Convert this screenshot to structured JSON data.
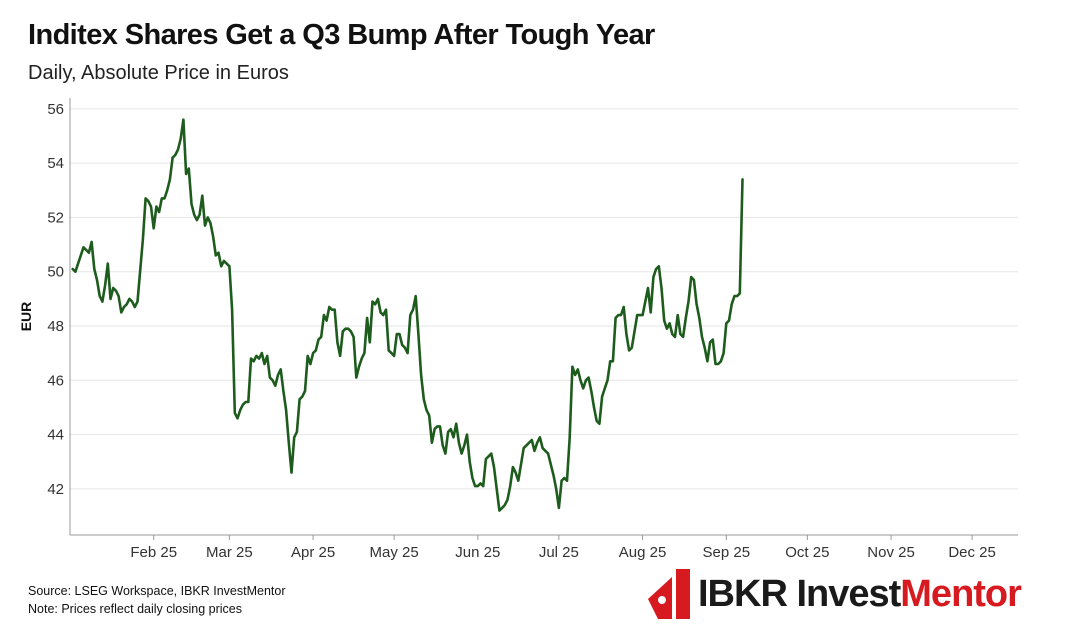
{
  "header": {
    "title": "Inditex Shares Get a Q3 Bump After Tough Year",
    "subtitle": "Daily, Absolute Price in Euros"
  },
  "footer": {
    "source": "Source: LSEG Workspace, IBKR InvestMentor",
    "note": "Note: Prices reflect daily closing prices"
  },
  "brand": {
    "name_part1": "IBKR Invest",
    "name_part2": "Mentor",
    "logo_icon": "ibkr-logo-icon",
    "colors": {
      "dark": "#1a1a1a",
      "red": "#d71920"
    }
  },
  "chart_data": {
    "type": "line",
    "title": "Inditex Shares Get a Q3 Bump After Tough Year",
    "subtitle": "Daily, Absolute Price in Euros",
    "xlabel": "",
    "ylabel": "EUR",
    "ylim": [
      40.3,
      56.4
    ],
    "yticks": [
      42,
      44,
      46,
      48,
      50,
      52,
      54,
      56
    ],
    "x_range_days": [
      0,
      351
    ],
    "xticks": [
      {
        "label": "Feb 25",
        "day": 31
      },
      {
        "label": "Mar 25",
        "day": 59
      },
      {
        "label": "Apr 25",
        "day": 90
      },
      {
        "label": "May 25",
        "day": 120
      },
      {
        "label": "Jun 25",
        "day": 151
      },
      {
        "label": "Jul 25",
        "day": 181
      },
      {
        "label": "Aug 25",
        "day": 212
      },
      {
        "label": "Sep 25",
        "day": 243
      },
      {
        "label": "Oct 25",
        "day": 273
      },
      {
        "label": "Nov 25",
        "day": 304
      },
      {
        "label": "Dec 25",
        "day": 334
      }
    ],
    "grid": true,
    "line_color": "#1e5c1e",
    "series": [
      {
        "name": "Inditex close (EUR)",
        "x_unit": "days since 1 Jan 2025",
        "points": [
          [
            1,
            50.1
          ],
          [
            2,
            50.0
          ],
          [
            4,
            50.6
          ],
          [
            5,
            50.9
          ],
          [
            6,
            50.8
          ],
          [
            7,
            50.7
          ],
          [
            8,
            51.1
          ],
          [
            9,
            50.1
          ],
          [
            10,
            49.7
          ],
          [
            11,
            49.1
          ],
          [
            12,
            48.9
          ],
          [
            13,
            49.5
          ],
          [
            14,
            50.3
          ],
          [
            15,
            49.0
          ],
          [
            16,
            49.4
          ],
          [
            17,
            49.3
          ],
          [
            18,
            49.1
          ],
          [
            19,
            48.5
          ],
          [
            20,
            48.7
          ],
          [
            21,
            48.8
          ],
          [
            22,
            49.0
          ],
          [
            23,
            48.9
          ],
          [
            24,
            48.7
          ],
          [
            25,
            48.9
          ],
          [
            27,
            51.2
          ],
          [
            28,
            52.7
          ],
          [
            29,
            52.6
          ],
          [
            30,
            52.4
          ],
          [
            31,
            51.6
          ],
          [
            32,
            52.4
          ],
          [
            33,
            52.2
          ],
          [
            34,
            52.7
          ],
          [
            35,
            52.7
          ],
          [
            36,
            53.0
          ],
          [
            37,
            53.4
          ],
          [
            38,
            54.2
          ],
          [
            39,
            54.3
          ],
          [
            40,
            54.5
          ],
          [
            41,
            54.9
          ],
          [
            42,
            55.6
          ],
          [
            43,
            53.6
          ],
          [
            44,
            53.8
          ],
          [
            45,
            52.5
          ],
          [
            46,
            52.1
          ],
          [
            47,
            51.9
          ],
          [
            48,
            52.1
          ],
          [
            49,
            52.8
          ],
          [
            50,
            51.7
          ],
          [
            51,
            52.0
          ],
          [
            52,
            51.8
          ],
          [
            53,
            51.3
          ],
          [
            54,
            50.6
          ],
          [
            55,
            50.7
          ],
          [
            56,
            50.2
          ],
          [
            57,
            50.4
          ],
          [
            58,
            50.3
          ],
          [
            59,
            50.2
          ],
          [
            60,
            48.6
          ],
          [
            61,
            44.8
          ],
          [
            62,
            44.6
          ],
          [
            63,
            44.9
          ],
          [
            64,
            45.1
          ],
          [
            65,
            45.2
          ],
          [
            66,
            45.2
          ],
          [
            67,
            46.8
          ],
          [
            68,
            46.7
          ],
          [
            69,
            46.9
          ],
          [
            70,
            46.8
          ],
          [
            71,
            47.0
          ],
          [
            72,
            46.6
          ],
          [
            73,
            46.9
          ],
          [
            74,
            46.1
          ],
          [
            75,
            46.0
          ],
          [
            76,
            45.8
          ],
          [
            77,
            46.2
          ],
          [
            78,
            46.4
          ],
          [
            79,
            45.6
          ],
          [
            80,
            44.9
          ],
          [
            81,
            43.7
          ],
          [
            82,
            42.6
          ],
          [
            83,
            43.9
          ],
          [
            84,
            44.1
          ],
          [
            85,
            45.3
          ],
          [
            86,
            45.4
          ],
          [
            87,
            45.6
          ],
          [
            88,
            46.9
          ],
          [
            89,
            46.6
          ],
          [
            90,
            47.0
          ],
          [
            91,
            47.1
          ],
          [
            92,
            47.5
          ],
          [
            93,
            47.6
          ],
          [
            94,
            48.4
          ],
          [
            95,
            48.2
          ],
          [
            96,
            48.7
          ],
          [
            97,
            48.6
          ],
          [
            98,
            48.6
          ],
          [
            99,
            47.4
          ],
          [
            100,
            46.9
          ],
          [
            101,
            47.8
          ],
          [
            102,
            47.9
          ],
          [
            103,
            47.9
          ],
          [
            104,
            47.8
          ],
          [
            105,
            47.6
          ],
          [
            106,
            46.1
          ],
          [
            107,
            46.5
          ],
          [
            108,
            46.8
          ],
          [
            109,
            47.0
          ],
          [
            110,
            48.3
          ],
          [
            111,
            47.4
          ],
          [
            112,
            48.9
          ],
          [
            113,
            48.8
          ],
          [
            114,
            49.0
          ],
          [
            115,
            48.5
          ],
          [
            116,
            48.4
          ],
          [
            117,
            48.6
          ],
          [
            118,
            47.1
          ],
          [
            119,
            47.0
          ],
          [
            120,
            46.9
          ],
          [
            121,
            47.7
          ],
          [
            122,
            47.7
          ],
          [
            123,
            47.3
          ],
          [
            124,
            47.2
          ],
          [
            125,
            47.0
          ],
          [
            126,
            48.4
          ],
          [
            127,
            48.6
          ],
          [
            128,
            49.1
          ],
          [
            129,
            47.7
          ],
          [
            130,
            46.2
          ],
          [
            131,
            45.3
          ],
          [
            132,
            44.9
          ],
          [
            133,
            44.7
          ],
          [
            134,
            43.7
          ],
          [
            135,
            44.2
          ],
          [
            136,
            44.3
          ],
          [
            137,
            44.3
          ],
          [
            138,
            43.6
          ],
          [
            139,
            43.3
          ],
          [
            140,
            44.1
          ],
          [
            141,
            44.2
          ],
          [
            142,
            43.9
          ],
          [
            143,
            44.4
          ],
          [
            144,
            43.7
          ],
          [
            145,
            43.3
          ],
          [
            146,
            43.6
          ],
          [
            147,
            44.0
          ],
          [
            148,
            43.0
          ],
          [
            149,
            42.4
          ],
          [
            150,
            42.1
          ],
          [
            151,
            42.1
          ],
          [
            152,
            42.2
          ],
          [
            153,
            42.1
          ],
          [
            154,
            43.1
          ],
          [
            155,
            43.2
          ],
          [
            156,
            43.3
          ],
          [
            157,
            42.8
          ],
          [
            158,
            42.0
          ],
          [
            159,
            41.2
          ],
          [
            160,
            41.3
          ],
          [
            161,
            41.4
          ],
          [
            162,
            41.6
          ],
          [
            163,
            42.1
          ],
          [
            164,
            42.8
          ],
          [
            165,
            42.6
          ],
          [
            166,
            42.3
          ],
          [
            167,
            42.9
          ],
          [
            168,
            43.5
          ],
          [
            169,
            43.6
          ],
          [
            170,
            43.7
          ],
          [
            171,
            43.8
          ],
          [
            172,
            43.4
          ],
          [
            173,
            43.7
          ],
          [
            174,
            43.9
          ],
          [
            175,
            43.5
          ],
          [
            176,
            43.4
          ],
          [
            177,
            43.3
          ],
          [
            178,
            42.9
          ],
          [
            179,
            42.5
          ],
          [
            180,
            42.0
          ],
          [
            181,
            41.3
          ],
          [
            182,
            42.3
          ],
          [
            183,
            42.4
          ],
          [
            184,
            42.3
          ],
          [
            185,
            43.9
          ],
          [
            186,
            46.5
          ],
          [
            187,
            46.2
          ],
          [
            188,
            46.4
          ],
          [
            189,
            46.0
          ],
          [
            190,
            45.7
          ],
          [
            191,
            46.0
          ],
          [
            192,
            46.1
          ],
          [
            193,
            45.6
          ],
          [
            194,
            45.0
          ],
          [
            195,
            44.5
          ],
          [
            196,
            44.4
          ],
          [
            197,
            45.4
          ],
          [
            198,
            45.7
          ],
          [
            199,
            46.0
          ],
          [
            200,
            46.7
          ],
          [
            201,
            46.7
          ],
          [
            202,
            48.3
          ],
          [
            203,
            48.4
          ],
          [
            204,
            48.4
          ],
          [
            205,
            48.7
          ],
          [
            206,
            47.7
          ],
          [
            207,
            47.1
          ],
          [
            208,
            47.2
          ],
          [
            209,
            47.8
          ],
          [
            210,
            48.4
          ],
          [
            211,
            48.4
          ],
          [
            212,
            48.4
          ],
          [
            213,
            48.9
          ],
          [
            214,
            49.4
          ],
          [
            215,
            48.5
          ],
          [
            216,
            49.8
          ],
          [
            217,
            50.1
          ],
          [
            218,
            50.2
          ],
          [
            219,
            49.4
          ],
          [
            220,
            48.2
          ],
          [
            221,
            47.9
          ],
          [
            222,
            48.1
          ],
          [
            223,
            47.7
          ],
          [
            224,
            47.6
          ],
          [
            225,
            48.4
          ],
          [
            226,
            47.7
          ],
          [
            227,
            47.6
          ],
          [
            228,
            48.3
          ],
          [
            229,
            48.9
          ],
          [
            230,
            49.8
          ],
          [
            231,
            49.7
          ],
          [
            232,
            48.8
          ],
          [
            233,
            48.3
          ],
          [
            234,
            47.6
          ],
          [
            235,
            47.2
          ],
          [
            236,
            46.7
          ],
          [
            237,
            47.4
          ],
          [
            238,
            47.5
          ],
          [
            239,
            46.6
          ],
          [
            240,
            46.6
          ],
          [
            241,
            46.7
          ],
          [
            242,
            47.0
          ],
          [
            243,
            48.1
          ],
          [
            244,
            48.2
          ],
          [
            245,
            48.8
          ],
          [
            246,
            49.1
          ],
          [
            247,
            49.1
          ],
          [
            248,
            49.2
          ],
          [
            249,
            53.4
          ]
        ]
      }
    ]
  }
}
